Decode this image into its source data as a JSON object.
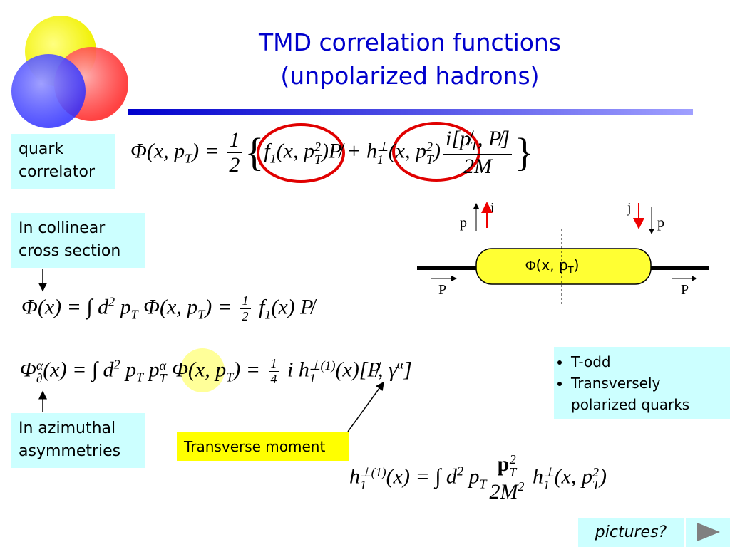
{
  "header": {
    "title": [
      "TMD correlation functions",
      "(unpolarized hadrons)"
    ]
  },
  "labels": {
    "quark_correlator": "quark correlator",
    "collinear": "In collinear cross section",
    "azimuthal": "In azimuthal asymmetries",
    "transverse_moment": "Transverse moment",
    "pictures": "pictures?"
  },
  "bullets": [
    "T-odd",
    "Transversely polarized quarks"
  ],
  "equations": {
    "quark_correlator": [
      "Φ(x, p",
      "T",
      ") = ",
      "1",
      "2",
      "{",
      "f",
      "1",
      "(x, p",
      "T",
      "2",
      ")",
      "P̸ + ",
      "h",
      "⊥",
      "1",
      "(x, p",
      "T",
      "2",
      ")",
      "i[p̸",
      "T",
      ", P̸]",
      "2M",
      "}"
    ],
    "collinear": [
      "Φ(x) = ∫ d",
      "2",
      " p",
      "T",
      " Φ(x, p",
      "T",
      ") = ",
      "1",
      "2",
      " f",
      "1",
      "(x) P̸"
    ],
    "azimuthal": [
      "Φ",
      "α",
      "∂",
      "(x) = ∫ d",
      "2",
      " p",
      "T",
      " p",
      "α",
      "T",
      " Φ(x, p",
      "T",
      ") = ",
      "1",
      "4",
      " i h",
      "⊥(1)",
      "1",
      "(x)[P̸, γ",
      "α",
      "]"
    ],
    "moment": [
      "h",
      "⊥(1)",
      "1",
      "(x) = ∫ d",
      "2",
      " p",
      "T",
      "p",
      "2",
      "T",
      "2M",
      "2",
      " h",
      "⊥",
      "1",
      "(x, p",
      "T",
      "2",
      ")"
    ]
  },
  "diagram": {
    "blob": [
      "Φ",
      "(x, p",
      "T",
      ")"
    ],
    "left_p": "p",
    "i": "i",
    "j": "j",
    "right_p": "p",
    "left_P": "P",
    "right_P": "P"
  }
}
